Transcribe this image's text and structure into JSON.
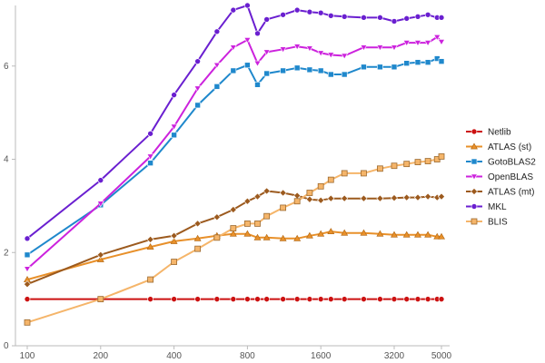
{
  "chart_data": {
    "type": "line",
    "x_scale": "log",
    "x": [
      100,
      200,
      320,
      400,
      500,
      600,
      700,
      800,
      880,
      960,
      1120,
      1280,
      1440,
      1600,
      1760,
      2000,
      2400,
      2800,
      3200,
      3600,
      4000,
      4400,
      4800,
      5000
    ],
    "xticks": [
      100,
      200,
      400,
      800,
      1600,
      3200,
      5000
    ],
    "xtick_labels": [
      "100",
      "200",
      "400",
      "800",
      "1600",
      "3200",
      "5000"
    ],
    "ylim": [
      0,
      7.3
    ],
    "yticks": [
      0,
      2,
      4,
      6
    ],
    "ytick_labels": [
      "0",
      "2",
      "4",
      "6"
    ],
    "grid": false,
    "legend_position": "right",
    "series": [
      {
        "name": "Netlib",
        "color": "#cc1111",
        "marker": "circle",
        "x": [
          100,
          200,
          320,
          400,
          500,
          600,
          700,
          800,
          880,
          960,
          1120,
          1280,
          1440,
          1600,
          1760,
          2000,
          2400,
          2800,
          3200,
          3600,
          4000,
          4400,
          4800,
          5000
        ],
        "values": [
          1.0,
          1.0,
          1.0,
          1.0,
          1.0,
          1.0,
          1.0,
          1.0,
          1.0,
          1.0,
          1.0,
          1.0,
          1.0,
          1.0,
          1.0,
          1.0,
          1.0,
          1.0,
          1.0,
          1.0,
          1.0,
          1.0,
          1.0,
          1.0
        ]
      },
      {
        "name": "ATLAS (st)",
        "color": "#e8902a",
        "marker": "triangle-up",
        "x": [
          100,
          200,
          320,
          400,
          500,
          600,
          700,
          800,
          880,
          960,
          1120,
          1280,
          1440,
          1600,
          1760,
          2000,
          2400,
          2800,
          3200,
          3600,
          4000,
          4400,
          4800,
          5000
        ],
        "values": [
          1.42,
          1.85,
          2.12,
          2.24,
          2.3,
          2.36,
          2.4,
          2.4,
          2.32,
          2.32,
          2.3,
          2.3,
          2.36,
          2.4,
          2.45,
          2.42,
          2.42,
          2.4,
          2.38,
          2.38,
          2.38,
          2.38,
          2.34,
          2.34
        ]
      },
      {
        "name": "GotoBLAS2",
        "color": "#1f88cc",
        "marker": "square",
        "x": [
          100,
          200,
          320,
          400,
          500,
          600,
          700,
          800,
          880,
          960,
          1120,
          1280,
          1440,
          1600,
          1760,
          2000,
          2400,
          2800,
          3200,
          3600,
          4000,
          4400,
          4800,
          5000
        ],
        "values": [
          1.95,
          3.02,
          3.92,
          4.52,
          5.16,
          5.56,
          5.9,
          6.02,
          5.6,
          5.84,
          5.9,
          5.96,
          5.92,
          5.9,
          5.82,
          5.82,
          5.98,
          5.98,
          5.98,
          6.06,
          6.08,
          6.08,
          6.16,
          6.1
        ]
      },
      {
        "name": "OpenBLAS",
        "color": "#cc22dd",
        "marker": "triangle-down",
        "x": [
          100,
          200,
          320,
          400,
          500,
          600,
          700,
          800,
          880,
          960,
          1120,
          1280,
          1440,
          1600,
          1760,
          2000,
          2400,
          2800,
          3200,
          3600,
          4000,
          4400,
          4800,
          5000
        ],
        "values": [
          1.65,
          3.05,
          4.06,
          4.7,
          5.52,
          6.02,
          6.4,
          6.56,
          6.06,
          6.3,
          6.36,
          6.42,
          6.38,
          6.28,
          6.24,
          6.22,
          6.4,
          6.4,
          6.4,
          6.5,
          6.5,
          6.5,
          6.62,
          6.52
        ]
      },
      {
        "name": "ATLAS (mt)",
        "color": "#9c5a1e",
        "marker": "diamond",
        "x": [
          100,
          200,
          320,
          400,
          500,
          600,
          700,
          800,
          880,
          960,
          1120,
          1280,
          1440,
          1600,
          1760,
          2000,
          2400,
          2800,
          3200,
          3600,
          4000,
          4400,
          4800,
          5000
        ],
        "values": [
          1.32,
          1.95,
          2.28,
          2.36,
          2.62,
          2.76,
          2.92,
          3.1,
          3.2,
          3.32,
          3.28,
          3.22,
          3.14,
          3.12,
          3.16,
          3.16,
          3.16,
          3.16,
          3.17,
          3.18,
          3.18,
          3.2,
          3.18,
          3.2
        ]
      },
      {
        "name": "MKL",
        "color": "#6a1fd0",
        "marker": "circle",
        "x": [
          100,
          200,
          320,
          400,
          500,
          600,
          700,
          800,
          880,
          960,
          1120,
          1280,
          1440,
          1600,
          1760,
          2000,
          2400,
          2800,
          3200,
          3600,
          4000,
          4400,
          4800,
          5000
        ],
        "values": [
          2.3,
          3.55,
          4.55,
          5.38,
          6.1,
          6.74,
          7.2,
          7.3,
          6.7,
          7.0,
          7.1,
          7.2,
          7.16,
          7.14,
          7.08,
          7.06,
          7.04,
          7.04,
          6.96,
          7.02,
          7.06,
          7.1,
          7.04,
          7.04
        ]
      },
      {
        "name": "BLIS",
        "color": "#f5b56a",
        "marker": "square-outline",
        "x": [
          100,
          200,
          320,
          400,
          500,
          600,
          700,
          800,
          880,
          960,
          1120,
          1280,
          1440,
          1600,
          1760,
          2000,
          2400,
          2800,
          3200,
          3600,
          4000,
          4400,
          4800,
          5000
        ],
        "values": [
          0.5,
          1.0,
          1.42,
          1.8,
          2.08,
          2.32,
          2.52,
          2.62,
          2.62,
          2.78,
          2.96,
          3.1,
          3.28,
          3.42,
          3.56,
          3.7,
          3.7,
          3.8,
          3.86,
          3.9,
          3.94,
          3.96,
          4.0,
          4.06
        ]
      }
    ]
  }
}
